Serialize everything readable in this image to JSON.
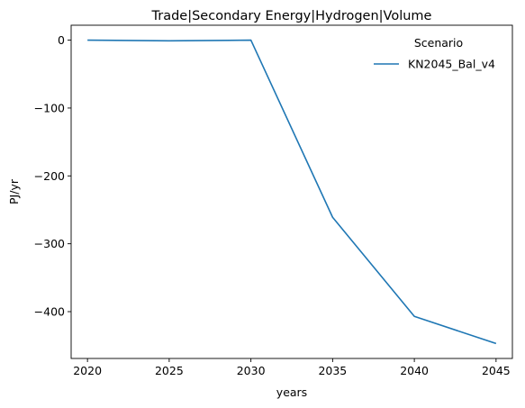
{
  "chart_data": {
    "type": "line",
    "title": "Trade|Secondary Energy|Hydrogen|Volume",
    "xlabel": "years",
    "ylabel": "PJ/yr",
    "x": [
      2020,
      2025,
      2030,
      2035,
      2040,
      2045
    ],
    "x_ticks": [
      "2020",
      "2025",
      "2030",
      "2035",
      "2040",
      "2045"
    ],
    "y_ticks": [
      "0",
      "−100",
      "−200",
      "−300",
      "−400"
    ],
    "y_tick_values": [
      0,
      -100,
      -200,
      -300,
      -400
    ],
    "xlim": [
      2019.0,
      2046.0
    ],
    "ylim": [
      -469,
      22
    ],
    "grid": false,
    "legend": {
      "title": "Scenario",
      "placement": "top-right"
    },
    "series": [
      {
        "name": "KN2045_Bal_v4",
        "color": "#1f77b4",
        "values": [
          0,
          -1,
          0,
          -261,
          -407,
          -447
        ]
      }
    ]
  }
}
